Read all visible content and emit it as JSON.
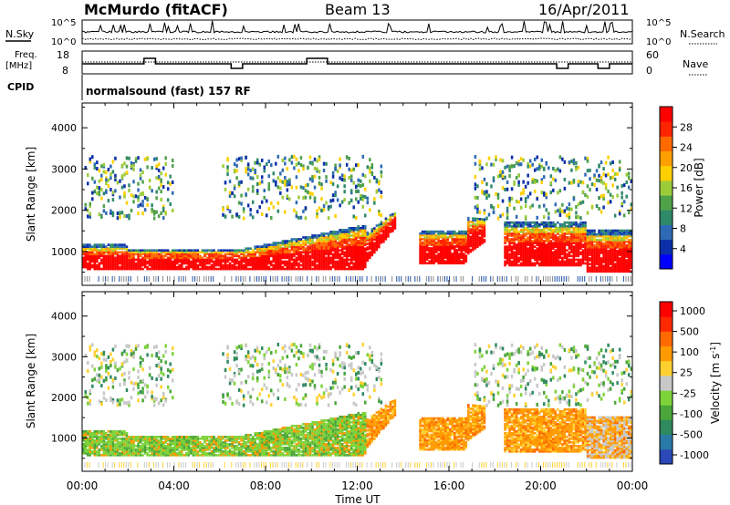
{
  "header": {
    "station": "McMurdo (fitACF)",
    "beam": "Beam 13",
    "date": "16/Apr/2011"
  },
  "strip": {
    "nsky_label": "N.Sky",
    "nsky_ticks": [
      "10^5",
      "10^0"
    ],
    "nsearch_label": "N.Search",
    "nsearch_ticks": [
      "10^5",
      "10^0"
    ],
    "freq_label_1": "Freq.",
    "freq_label_2": "[MHz]",
    "freq_ticks": [
      "18",
      "8"
    ],
    "nave_label": "Nave",
    "nave_ticks": [
      "60",
      "0"
    ],
    "cpid_label": "CPID",
    "cpid_text": "normalsound (fast) 157 RF"
  },
  "colors": {
    "power": [
      "#0000ff",
      "#0a2fa8",
      "#2e6ab4",
      "#2f8a6a",
      "#4fa14a",
      "#9ccc3a",
      "#ffd000",
      "#ffa000",
      "#ff6a00",
      "#ff2400",
      "#ff0000"
    ],
    "velocity": [
      "#2a48b8",
      "#2a7aa8",
      "#2f8a60",
      "#4aa63a",
      "#7ed23a",
      "#c8c8c8",
      "#ffd030",
      "#ff9a00",
      "#ff6a00",
      "#ff2a00",
      "#ff0000"
    ]
  },
  "chart_data": [
    {
      "type": "heatmap",
      "title": "",
      "xlabel": "Time UT",
      "ylabel": "Slant Range [km]",
      "x_ticks": [
        "00:00",
        "04:00",
        "08:00",
        "12:00",
        "16:00",
        "20:00",
        "00:00"
      ],
      "y_ticks": [
        "1000",
        "2000",
        "3000",
        "4000"
      ],
      "ylim": [
        180,
        4600
      ],
      "colorbar_label": "Power [dB]",
      "colorbar_ticks": [
        "4",
        "8",
        "12",
        "16",
        "20",
        "24",
        "28"
      ]
    },
    {
      "type": "heatmap",
      "title": "",
      "xlabel": "Time UT",
      "ylabel": "Slant Range [km]",
      "x_ticks": [
        "00:00",
        "04:00",
        "08:00",
        "12:00",
        "16:00",
        "20:00",
        "00:00"
      ],
      "y_ticks": [
        "1000",
        "2000",
        "3000",
        "4000"
      ],
      "ylim": [
        180,
        4600
      ],
      "colorbar_label": "Velocity [m s",
      "colorbar_label_sup": "-1",
      "colorbar_label_end": "]",
      "colorbar_ticks": [
        "1000",
        "500",
        "100",
        "25",
        "-25",
        "-100",
        "-500",
        "-1000"
      ]
    }
  ]
}
